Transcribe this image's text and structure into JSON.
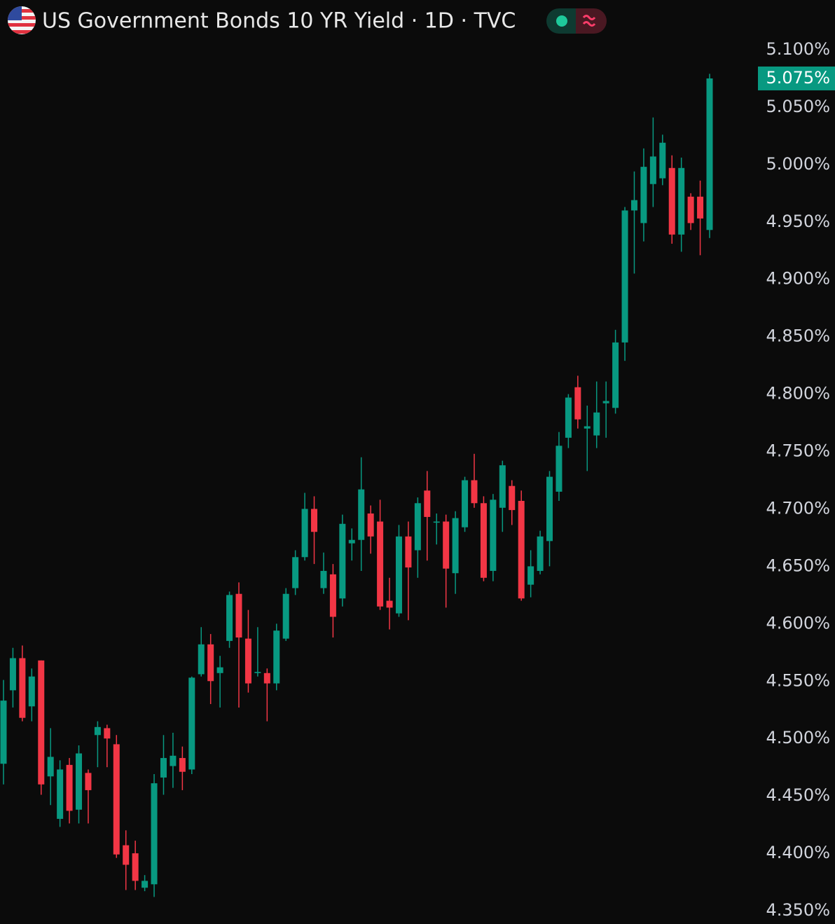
{
  "chart_data": {
    "type": "candlestick",
    "title": "US Government Bonds 10 YR Yield · 1D · TVC",
    "up_color": "#089981",
    "down_color": "#f23645",
    "grid": false,
    "ylim": [
      4.35,
      5.1
    ],
    "yticks": [
      {
        "value": 5.1,
        "label": "5.100%"
      },
      {
        "value": 5.05,
        "label": "5.050%"
      },
      {
        "value": 5.0,
        "label": "5.000%"
      },
      {
        "value": 4.95,
        "label": "4.950%"
      },
      {
        "value": 4.9,
        "label": "4.900%"
      },
      {
        "value": 4.85,
        "label": "4.850%"
      },
      {
        "value": 4.8,
        "label": "4.800%"
      },
      {
        "value": 4.75,
        "label": "4.750%"
      },
      {
        "value": 4.7,
        "label": "4.700%"
      },
      {
        "value": 4.65,
        "label": "4.650%"
      },
      {
        "value": 4.6,
        "label": "4.600%"
      },
      {
        "value": 4.55,
        "label": "4.550%"
      },
      {
        "value": 4.5,
        "label": "4.500%"
      },
      {
        "value": 4.45,
        "label": "4.450%"
      },
      {
        "value": 4.4,
        "label": "4.400%"
      },
      {
        "value": 4.35,
        "label": "4.350%"
      }
    ],
    "open": [
      4.478,
      4.542,
      4.57,
      4.528,
      4.568,
      4.467,
      4.43,
      4.477,
      4.438,
      4.47,
      4.503,
      4.509,
      4.495,
      4.407,
      4.4,
      4.37,
      4.373,
      4.466,
      4.476,
      4.483,
      4.473,
      4.556,
      4.582,
      4.557,
      4.585,
      4.626,
      4.587,
      4.557,
      4.557,
      4.548,
      4.587,
      4.631,
      4.658,
      4.7,
      4.631,
      4.643,
      4.622,
      4.67,
      4.673,
      4.696,
      4.689,
      4.62,
      4.609,
      4.676,
      4.664,
      4.716,
      4.688,
      4.689,
      4.644,
      4.684,
      4.725,
      4.705,
      4.646,
      4.701,
      4.72,
      4.707,
      4.634,
      4.646,
      4.672,
      4.715,
      4.762,
      4.806,
      4.77,
      4.764,
      4.792,
      4.788,
      4.845,
      4.96,
      4.949,
      4.983,
      4.988,
      4.997,
      4.939,
      4.972,
      4.972,
      4.943
    ],
    "high": [
      4.551,
      4.579,
      4.581,
      4.561,
      4.568,
      4.509,
      4.481,
      4.483,
      4.494,
      4.473,
      4.515,
      4.512,
      4.503,
      4.42,
      4.411,
      4.381,
      4.469,
      4.503,
      4.505,
      4.493,
      4.554,
      4.597,
      4.591,
      4.572,
      4.628,
      4.636,
      4.612,
      4.597,
      4.561,
      4.6,
      4.631,
      4.664,
      4.714,
      4.711,
      4.662,
      4.652,
      4.695,
      4.683,
      4.745,
      4.703,
      4.708,
      4.64,
      4.686,
      4.689,
      4.71,
      4.733,
      4.696,
      4.695,
      4.698,
      4.728,
      4.748,
      4.711,
      4.713,
      4.742,
      4.725,
      4.716,
      4.664,
      4.681,
      4.733,
      4.767,
      4.8,
      4.816,
      4.79,
      4.811,
      4.811,
      4.856,
      4.963,
      4.994,
      5.014,
      5.041,
      5.026,
      5.008,
      5.006,
      4.975,
      4.986,
      5.079
    ],
    "low": [
      4.46,
      4.527,
      4.515,
      4.515,
      4.451,
      4.442,
      4.423,
      4.426,
      4.426,
      4.426,
      4.475,
      4.475,
      4.396,
      4.368,
      4.368,
      4.367,
      4.362,
      4.451,
      4.457,
      4.455,
      4.469,
      4.554,
      4.53,
      4.527,
      4.579,
      4.527,
      4.54,
      4.554,
      4.515,
      4.542,
      4.585,
      4.625,
      4.655,
      4.652,
      4.626,
      4.588,
      4.615,
      4.655,
      4.646,
      4.661,
      4.612,
      4.595,
      4.606,
      4.603,
      4.64,
      4.655,
      4.669,
      4.614,
      4.626,
      4.68,
      4.701,
      4.637,
      4.637,
      4.68,
      4.686,
      4.62,
      4.623,
      4.643,
      4.65,
      4.707,
      4.753,
      4.77,
      4.733,
      4.753,
      4.762,
      4.783,
      4.829,
      4.905,
      4.933,
      4.963,
      4.982,
      4.931,
      4.924,
      4.943,
      4.921,
      4.936
    ],
    "close": [
      4.533,
      4.57,
      4.518,
      4.554,
      4.46,
      4.484,
      4.473,
      4.437,
      4.487,
      4.455,
      4.51,
      4.5,
      4.399,
      4.39,
      4.376,
      4.376,
      4.461,
      4.483,
      4.485,
      4.471,
      4.553,
      4.582,
      4.55,
      4.562,
      4.625,
      4.588,
      4.548,
      4.558,
      4.548,
      4.594,
      4.626,
      4.658,
      4.7,
      4.68,
      4.646,
      4.606,
      4.687,
      4.673,
      4.717,
      4.676,
      4.615,
      4.614,
      4.676,
      4.649,
      4.705,
      4.693,
      4.689,
      4.648,
      4.692,
      4.725,
      4.705,
      4.64,
      4.708,
      4.738,
      4.699,
      4.622,
      4.65,
      4.676,
      4.728,
      4.755,
      4.797,
      4.778,
      4.772,
      4.784,
      4.794,
      4.845,
      4.96,
      4.969,
      4.998,
      5.007,
      5.019,
      4.939,
      4.997,
      4.949,
      4.953,
      5.075
    ],
    "last_label": "5.075%"
  }
}
